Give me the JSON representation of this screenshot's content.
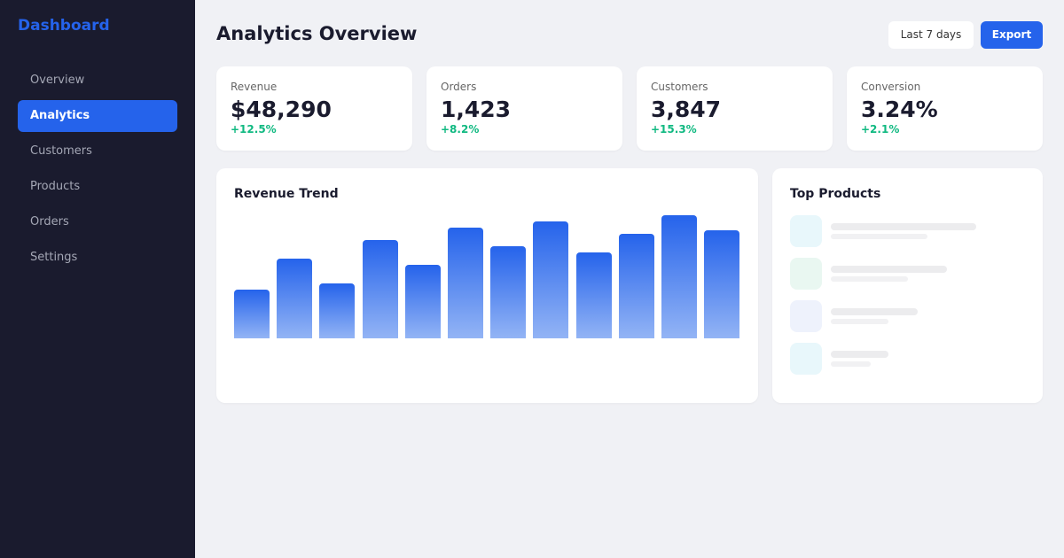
{
  "sidebar": {
    "brand": "Dashboard",
    "nav": [
      "Overview",
      "Analytics",
      "Customers",
      "Products",
      "Orders",
      "Settings"
    ]
  },
  "header": {
    "title": "Analytics Overview",
    "buttons": [
      "Last 7 days",
      "Export"
    ]
  },
  "stats": [
    {
      "label": "Revenue",
      "value": "$48,290",
      "delta": "+12.5%"
    },
    {
      "label": "Orders",
      "value": "1,423",
      "delta": "+8.2%"
    },
    {
      "label": "Customers",
      "value": "3,847",
      "delta": "+15.3%"
    },
    {
      "label": "Conversion",
      "value": "3.24%",
      "delta": "+2.1%"
    }
  ],
  "chart_data": {
    "type": "bar",
    "title": "Revenue Trend",
    "values": [
      55,
      90,
      62,
      111,
      83,
      125,
      104,
      132,
      97,
      118,
      139,
      122
    ]
  },
  "products": {
    "title": "Top Products"
  }
}
